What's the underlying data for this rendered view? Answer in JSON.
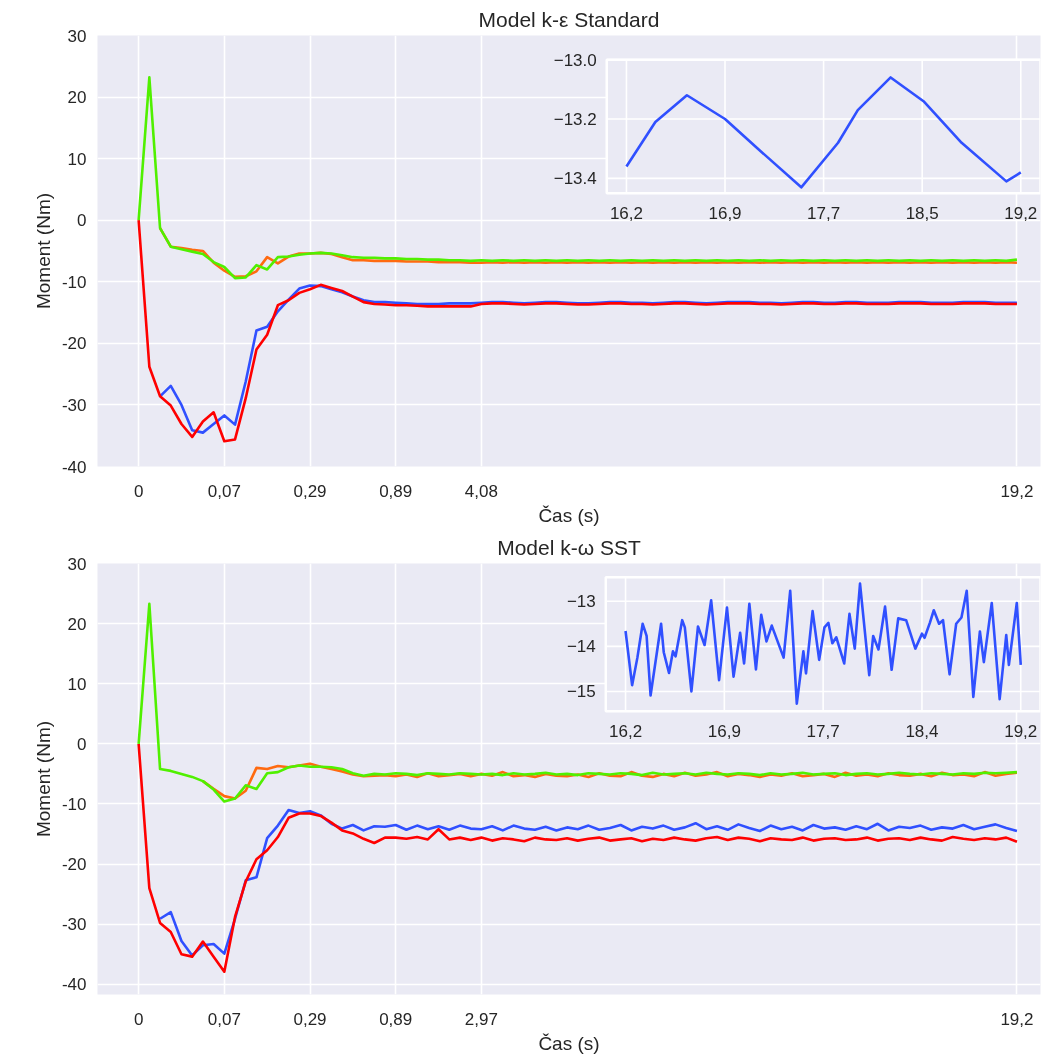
{
  "chart_data": [
    {
      "type": "line",
      "title": "Model k-ε Standard",
      "xlabel": "Čas (s)",
      "ylabel": "Moment (Nm)",
      "ylim": [
        -40,
        30
      ],
      "categories": [
        "0",
        null,
        null,
        null,
        null,
        null,
        null,
        null,
        "0,07",
        null,
        null,
        null,
        null,
        null,
        null,
        null,
        "0,29",
        null,
        null,
        null,
        null,
        null,
        null,
        null,
        "0,89",
        null,
        null,
        null,
        null,
        null,
        null,
        null,
        "4,08",
        null,
        null,
        null,
        null,
        null,
        null,
        null,
        null,
        null,
        null,
        null,
        null,
        null,
        null,
        null,
        null,
        null,
        null,
        null,
        null,
        null,
        null,
        null,
        null,
        null,
        null,
        null,
        null,
        null,
        null,
        null,
        null,
        null,
        null,
        null,
        null,
        null,
        null,
        null,
        null,
        null,
        null,
        null,
        null,
        null,
        null,
        null,
        null,
        null,
        "19,2"
      ],
      "yticks": [
        -40,
        -30,
        -20,
        -10,
        0,
        10,
        20,
        30
      ],
      "grid": true,
      "line_style": "solid",
      "series": [
        {
          "color": "#3050ff",
          "values": [
            null,
            null,
            -28.6,
            -26.9,
            -30.0,
            -34.1,
            -34.5,
            -33.1,
            -31.7,
            -33.2,
            -26.2,
            -17.9,
            -17.3,
            -14.8,
            -12.9,
            -11.1,
            -10.6,
            -10.7,
            -11.2,
            -11.7,
            -12.4,
            -13.0,
            -13.3,
            -13.3,
            -13.4,
            -13.5,
            -13.6,
            -13.6,
            -13.6,
            -13.5,
            -13.5,
            -13.5,
            -13.4,
            -13.3,
            -13.3,
            -13.4,
            -13.5,
            -13.4,
            -13.3,
            -13.3,
            -13.4,
            -13.5,
            -13.5,
            -13.4,
            -13.3,
            -13.3,
            -13.4,
            -13.4,
            -13.5,
            -13.4,
            -13.3,
            -13.3,
            -13.4,
            -13.5,
            -13.4,
            -13.3,
            -13.3,
            -13.3,
            -13.4,
            -13.4,
            -13.5,
            -13.4,
            -13.3,
            -13.3,
            -13.4,
            -13.4,
            -13.3,
            -13.3,
            -13.4,
            -13.4,
            -13.4,
            -13.3,
            -13.3,
            -13.3,
            -13.4,
            -13.4,
            -13.4,
            -13.3,
            -13.3,
            -13.3,
            -13.4,
            -13.4,
            -13.4
          ]
        },
        {
          "color": "#ff0000",
          "values": [
            0,
            -23.8,
            -28.6,
            -30.1,
            -33.1,
            -35.2,
            -32.7,
            -31.2,
            -35.9,
            -35.6,
            -28.9,
            -21.0,
            -18.6,
            -13.8,
            -13.0,
            -11.8,
            -11.2,
            -10.5,
            -11.0,
            -11.5,
            -12.4,
            -13.3,
            -13.6,
            -13.7,
            -13.8,
            -13.8,
            -13.9,
            -14.0,
            -14.0,
            -14.0,
            -14.0,
            -14.0,
            -13.6,
            -13.5,
            -13.5,
            -13.6,
            -13.7,
            -13.6,
            -13.5,
            -13.5,
            -13.6,
            -13.7,
            -13.7,
            -13.6,
            -13.5,
            -13.5,
            -13.6,
            -13.6,
            -13.7,
            -13.6,
            -13.5,
            -13.5,
            -13.6,
            -13.7,
            -13.6,
            -13.5,
            -13.5,
            -13.5,
            -13.6,
            -13.6,
            -13.7,
            -13.6,
            -13.5,
            -13.5,
            -13.6,
            -13.6,
            -13.5,
            -13.5,
            -13.6,
            -13.6,
            -13.6,
            -13.5,
            -13.5,
            -13.5,
            -13.6,
            -13.6,
            -13.6,
            -13.5,
            -13.5,
            -13.5,
            -13.6,
            -13.6,
            -13.6
          ]
        },
        {
          "color": "#ff6a10",
          "values": [
            null,
            null,
            -1.3,
            -4.3,
            -4.5,
            -4.8,
            -5.0,
            -6.9,
            -8.2,
            -9.2,
            -9.1,
            -8.3,
            -6.0,
            -7.0,
            -5.9,
            -5.4,
            -5.4,
            -5.3,
            -5.5,
            -6.0,
            -6.5,
            -6.5,
            -6.6,
            -6.6,
            -6.6,
            -6.7,
            -6.7,
            -6.7,
            -6.8,
            -6.8,
            -6.8,
            -6.9,
            -6.9,
            -6.8,
            -6.9,
            -6.8,
            -6.9,
            -6.8,
            -6.9,
            -6.8,
            -6.9,
            -6.8,
            -6.9,
            -6.8,
            -6.9,
            -6.8,
            -6.9,
            -6.8,
            -6.9,
            -6.8,
            -6.9,
            -6.8,
            -6.9,
            -6.8,
            -6.9,
            -6.8,
            -6.9,
            -6.8,
            -6.9,
            -6.8,
            -6.9,
            -6.8,
            -6.9,
            -6.8,
            -6.9,
            -6.8,
            -6.9,
            -6.8,
            -6.9,
            -6.8,
            -6.9,
            -6.8,
            -6.9,
            -6.8,
            -6.9,
            -6.8,
            -6.9,
            -6.8,
            -6.9,
            -6.8,
            -6.9,
            -6.8,
            -6.9
          ]
        },
        {
          "color": "#50f000",
          "values": [
            0,
            23.2,
            -1.3,
            -4.3,
            -4.7,
            -5.1,
            -5.5,
            -6.8,
            -7.6,
            -9.4,
            -9.3,
            -7.3,
            -8.0,
            -6.0,
            -5.9,
            -5.6,
            -5.4,
            -5.3,
            -5.4,
            -5.7,
            -6.0,
            -6.1,
            -6.1,
            -6.2,
            -6.2,
            -6.3,
            -6.3,
            -6.4,
            -6.4,
            -6.5,
            -6.5,
            -6.6,
            -6.5,
            -6.6,
            -6.5,
            -6.6,
            -6.5,
            -6.6,
            -6.5,
            -6.6,
            -6.5,
            -6.6,
            -6.5,
            -6.6,
            -6.5,
            -6.6,
            -6.5,
            -6.6,
            -6.5,
            -6.6,
            -6.5,
            -6.6,
            -6.5,
            -6.6,
            -6.5,
            -6.6,
            -6.5,
            -6.6,
            -6.5,
            -6.6,
            -6.5,
            -6.6,
            -6.5,
            -6.6,
            -6.5,
            -6.6,
            -6.5,
            -6.6,
            -6.5,
            -6.6,
            -6.5,
            -6.6,
            -6.5,
            -6.6,
            -6.5,
            -6.6,
            -6.5,
            -6.6,
            -6.5,
            -6.6,
            -6.5,
            -6.6,
            -6.4
          ]
        }
      ]
    },
    {
      "type": "line",
      "xlim": [
        16.05,
        19.35
      ],
      "ylim": [
        -13.45,
        -13.0
      ],
      "xticks": [
        {
          "value": 16.2,
          "label": "16,2"
        },
        {
          "value": 16.95,
          "label": "16,9"
        },
        {
          "value": 17.7,
          "label": "17,7"
        },
        {
          "value": 18.45,
          "label": "18,5"
        },
        {
          "value": 19.2,
          "label": "19,2"
        }
      ],
      "yticks": [
        {
          "value": -13.0,
          "label": "−13.0"
        },
        {
          "value": -13.2,
          "label": "−13.2"
        },
        {
          "value": -13.4,
          "label": "−13.4"
        }
      ],
      "grid": true,
      "line_style": "solid",
      "series": [
        {
          "color": "#3050ff",
          "x": [
            16.2,
            16.42,
            16.66,
            16.95,
            17.2,
            17.53,
            17.81,
            17.96,
            18.21,
            18.46,
            18.75,
            19.09,
            19.2
          ],
          "values": [
            -13.36,
            -13.21,
            -13.12,
            -13.2,
            -13.3,
            -13.43,
            -13.28,
            -13.17,
            -13.06,
            -13.14,
            -13.28,
            -13.41,
            -13.38
          ]
        }
      ]
    },
    {
      "type": "line",
      "title": "Model k-ω SST",
      "xlabel": "Čas (s)",
      "ylabel": "Moment (Nm)",
      "ylim": [
        -41.7,
        30
      ],
      "categories": [
        "0",
        null,
        null,
        null,
        null,
        null,
        null,
        null,
        "0,07",
        null,
        null,
        null,
        null,
        null,
        null,
        null,
        "0,29",
        null,
        null,
        null,
        null,
        null,
        null,
        null,
        "0,89",
        null,
        null,
        null,
        null,
        null,
        null,
        null,
        "2,97",
        null,
        null,
        null,
        null,
        null,
        null,
        null,
        null,
        null,
        null,
        null,
        null,
        null,
        null,
        null,
        null,
        null,
        null,
        null,
        null,
        null,
        null,
        null,
        null,
        null,
        null,
        null,
        null,
        null,
        null,
        null,
        null,
        null,
        null,
        null,
        null,
        null,
        null,
        null,
        null,
        null,
        null,
        null,
        null,
        null,
        null,
        null,
        null,
        null,
        "19,2"
      ],
      "yticks": [
        -40,
        -30,
        -20,
        -10,
        0,
        10,
        20,
        30
      ],
      "grid": true,
      "line_style": "solid",
      "series": [
        {
          "color": "#3050ff",
          "values": [
            null,
            null,
            -29.1,
            -28.0,
            -32.8,
            -35.2,
            -33.5,
            -33.3,
            -34.9,
            -29.1,
            -22.7,
            -22.2,
            -15.7,
            -13.6,
            -11.0,
            -11.5,
            -11.2,
            -11.9,
            -13.3,
            -14.1,
            -13.5,
            -14.4,
            -13.7,
            -13.8,
            -13.5,
            -14.3,
            -13.6,
            -14.2,
            -13.7,
            -14.3,
            -13.6,
            -14.1,
            -14.2,
            -13.7,
            -14.4,
            -13.6,
            -14.1,
            -14.3,
            -13.8,
            -14.4,
            -13.9,
            -14.2,
            -13.6,
            -14.3,
            -14.0,
            -13.5,
            -14.4,
            -13.8,
            -14.1,
            -13.6,
            -14.3,
            -13.9,
            -13.2,
            -14.2,
            -13.7,
            -14.3,
            -13.4,
            -14.0,
            -14.5,
            -13.6,
            -14.2,
            -13.8,
            -14.4,
            -13.5,
            -14.1,
            -13.9,
            -14.3,
            -13.7,
            -14.2,
            -13.3,
            -14.4,
            -13.8,
            -14.0,
            -13.6,
            -14.3,
            -13.9,
            -14.1,
            -13.5,
            -14.2,
            -13.8,
            -13.4,
            -14.0,
            -14.5
          ]
        },
        {
          "color": "#ff0000",
          "values": [
            0,
            -24.0,
            -29.8,
            -31.3,
            -35.0,
            -35.4,
            -32.9,
            -35.4,
            -37.9,
            -28.8,
            -22.9,
            -19.2,
            -17.7,
            -15.5,
            -12.3,
            -11.6,
            -11.6,
            -12.0,
            -13.1,
            -14.4,
            -14.9,
            -15.8,
            -16.5,
            -15.6,
            -15.6,
            -15.8,
            -15.5,
            -15.9,
            -14.2,
            -15.9,
            -15.6,
            -16.0,
            -15.6,
            -16.1,
            -15.7,
            -15.9,
            -16.2,
            -15.6,
            -15.9,
            -16.0,
            -15.7,
            -16.1,
            -15.8,
            -15.6,
            -16.1,
            -15.9,
            -15.7,
            -16.2,
            -15.8,
            -16.0,
            -15.6,
            -15.9,
            -16.1,
            -15.7,
            -15.5,
            -16.0,
            -15.6,
            -15.8,
            -16.2,
            -15.7,
            -15.9,
            -16.0,
            -15.6,
            -16.1,
            -15.8,
            -15.7,
            -16.0,
            -15.9,
            -15.6,
            -16.1,
            -15.8,
            -15.7,
            -16.0,
            -15.6,
            -15.9,
            -16.1,
            -15.5,
            -15.8,
            -16.0,
            -15.7,
            -15.9,
            -15.6,
            -16.3
          ]
        },
        {
          "color": "#ff6a10",
          "values": [
            null,
            null,
            null,
            null,
            null,
            null,
            -6.2,
            -7.5,
            -8.7,
            -9.1,
            -7.8,
            -4.0,
            -4.2,
            -3.7,
            -3.9,
            -3.6,
            -3.3,
            -3.8,
            -4.2,
            -4.6,
            -5.1,
            -5.4,
            -5.3,
            -5.2,
            -5.4,
            -5.1,
            -5.5,
            -4.9,
            -5.4,
            -5.2,
            -5.0,
            -5.4,
            -5.0,
            -5.3,
            -4.7,
            -5.4,
            -5.2,
            -5.5,
            -5.0,
            -5.3,
            -5.4,
            -5.1,
            -5.5,
            -4.9,
            -5.3,
            -5.4,
            -4.7,
            -5.3,
            -5.5,
            -5.0,
            -5.4,
            -4.8,
            -5.3,
            -5.1,
            -4.7,
            -5.4,
            -5.0,
            -5.2,
            -5.5,
            -5.1,
            -5.3,
            -4.9,
            -5.4,
            -5.2,
            -5.0,
            -5.5,
            -4.8,
            -5.3,
            -5.1,
            -5.4,
            -4.9,
            -5.2,
            -5.3,
            -5.0,
            -5.4,
            -4.8,
            -5.2,
            -5.1,
            -5.4,
            -4.7,
            -5.3,
            -5.0,
            -4.8
          ]
        },
        {
          "color": "#50f000",
          "values": [
            0,
            23.3,
            -4.2,
            -4.5,
            -5.0,
            -5.5,
            -6.2,
            -7.6,
            -9.6,
            -9.1,
            -6.9,
            -7.5,
            -4.9,
            -4.7,
            -3.9,
            -3.6,
            -3.8,
            -3.8,
            -3.9,
            -4.2,
            -4.9,
            -5.3,
            -5.0,
            -5.1,
            -4.9,
            -5.0,
            -5.2,
            -4.9,
            -5.0,
            -5.1,
            -4.9,
            -5.0,
            -5.1,
            -5.0,
            -5.2,
            -4.9,
            -5.1,
            -5.0,
            -4.8,
            -5.1,
            -5.0,
            -5.2,
            -4.9,
            -5.0,
            -5.1,
            -4.9,
            -5.0,
            -5.2,
            -4.8,
            -5.1,
            -5.0,
            -4.9,
            -5.1,
            -4.8,
            -5.0,
            -5.1,
            -4.9,
            -5.0,
            -5.2,
            -4.9,
            -5.1,
            -5.0,
            -4.8,
            -5.1,
            -5.0,
            -4.9,
            -5.2,
            -5.0,
            -4.9,
            -5.1,
            -5.0,
            -4.8,
            -5.0,
            -5.1,
            -4.9,
            -5.0,
            -5.1,
            -4.9,
            -5.0,
            -4.8,
            -4.9,
            -4.8,
            -4.7
          ]
        }
      ]
    },
    {
      "type": "line",
      "xlim": [
        16.05,
        19.35
      ],
      "ylim": [
        -15.44,
        -12.47
      ],
      "xticks": [
        {
          "value": 16.2,
          "label": "16,2"
        },
        {
          "value": 16.95,
          "label": "16,9"
        },
        {
          "value": 17.7,
          "label": "17,7"
        },
        {
          "value": 18.45,
          "label": "18,4"
        },
        {
          "value": 19.2,
          "label": "19,2"
        }
      ],
      "yticks": [
        {
          "value": -13,
          "label": "−13"
        },
        {
          "value": -14,
          "label": "−14"
        },
        {
          "value": -15,
          "label": "−15"
        }
      ],
      "grid": true,
      "line_style": "solid",
      "series": [
        {
          "color": "#3050ff",
          "x": [
            16.2,
            16.25,
            16.29,
            16.33,
            16.36,
            16.39,
            16.47,
            16.49,
            16.53,
            16.56,
            16.58,
            16.63,
            16.65,
            16.7,
            16.75,
            16.8,
            16.85,
            16.91,
            16.97,
            17.02,
            17.07,
            17.1,
            17.14,
            17.19,
            17.23,
            17.27,
            17.31,
            17.4,
            17.45,
            17.5,
            17.55,
            17.57,
            17.62,
            17.67,
            17.71,
            17.74,
            17.77,
            17.8,
            17.86,
            17.9,
            17.94,
            17.98,
            18.05,
            18.08,
            18.12,
            18.17,
            18.22,
            18.27,
            18.33,
            18.4,
            18.45,
            18.47,
            18.51,
            18.54,
            18.58,
            18.61,
            18.66,
            18.71,
            18.75,
            18.79,
            18.84,
            18.89,
            18.92,
            18.98,
            19.04,
            19.09,
            19.11,
            19.17,
            19.2
          ],
          "values": [
            -13.66,
            -14.86,
            -14.25,
            -13.5,
            -13.77,
            -15.09,
            -13.5,
            -14.13,
            -14.59,
            -14.11,
            -14.22,
            -13.42,
            -13.58,
            -15.0,
            -13.56,
            -13.97,
            -12.98,
            -14.75,
            -13.14,
            -14.67,
            -13.7,
            -14.38,
            -13.06,
            -14.51,
            -13.3,
            -13.89,
            -13.54,
            -14.25,
            -12.77,
            -15.27,
            -14.11,
            -14.6,
            -13.22,
            -14.3,
            -13.58,
            -13.48,
            -13.93,
            -13.8,
            -14.38,
            -13.28,
            -14.05,
            -12.61,
            -14.64,
            -13.77,
            -14.07,
            -13.12,
            -14.52,
            -13.38,
            -13.42,
            -14.05,
            -13.72,
            -13.81,
            -13.48,
            -13.2,
            -13.5,
            -13.42,
            -14.62,
            -13.5,
            -13.36,
            -12.77,
            -15.12,
            -13.67,
            -14.35,
            -13.04,
            -15.17,
            -13.75,
            -14.41,
            -13.04,
            -14.41
          ]
        }
      ]
    }
  ]
}
